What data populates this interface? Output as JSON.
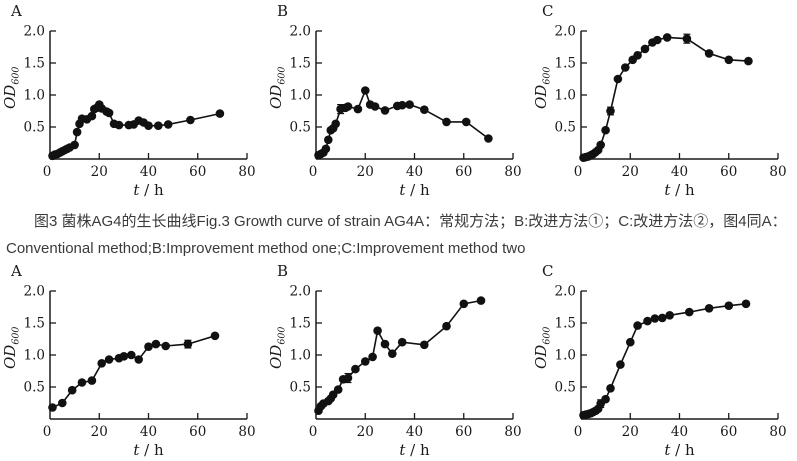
{
  "figure": {
    "caption_line1": "图3 菌株AG4的生长曲线Fig.3 Growth curve of strain AG4A：常规方法；B:改进方法①；C:改进方法②，图4同A：",
    "caption_line2": "Conventional method;B:Improvement method one;C:Improvement method two"
  },
  "colors": {
    "data_color": "#111111",
    "axis_color": "#1a1a1a",
    "caption_text": "#3a3a3a",
    "background": "#ffffff"
  },
  "axes": {
    "xlabel_italic": "t",
    "xlabel_rest": " / h",
    "ylabel_main": "OD",
    "ylabel_sub": "600",
    "xlim": [
      0,
      80
    ],
    "ylim": [
      0,
      2
    ],
    "xticks": [
      20,
      40,
      60,
      80
    ],
    "xtick_labels": [
      "20",
      "40",
      "60",
      "80"
    ],
    "yticks": [
      0.5,
      1.0,
      1.5,
      2.0
    ],
    "ytick_labels": [
      "0.5",
      "1.0",
      "1.5",
      "2.0"
    ],
    "origin_label": "0",
    "grid": false,
    "legend": "none"
  },
  "chart_data": [
    {
      "id": "fig3-A",
      "label": "A",
      "type": "line",
      "figure": "Fig.3",
      "xlabel": "t / h",
      "ylabel": "OD600",
      "points": [
        [
          1,
          0.05
        ],
        [
          2,
          0.07
        ],
        [
          3,
          0.08
        ],
        [
          4,
          0.1
        ],
        [
          5,
          0.12
        ],
        [
          6,
          0.14
        ],
        [
          7,
          0.16
        ],
        [
          8,
          0.18
        ],
        [
          10,
          0.22
        ],
        [
          11,
          0.42
        ],
        [
          12,
          0.55
        ],
        [
          13,
          0.63
        ],
        [
          15,
          0.62
        ],
        [
          17,
          0.67
        ],
        [
          18,
          0.78
        ],
        [
          19,
          0.8
        ],
        [
          20,
          0.85
        ],
        [
          21,
          0.79
        ],
        [
          23,
          0.74
        ],
        [
          24,
          0.72
        ],
        [
          26,
          0.55
        ],
        [
          28,
          0.53
        ],
        [
          32,
          0.53
        ],
        [
          34,
          0.54
        ],
        [
          36,
          0.6
        ],
        [
          38,
          0.57
        ],
        [
          40,
          0.52
        ],
        [
          44,
          0.52
        ],
        [
          48,
          0.54
        ],
        [
          57,
          0.61
        ],
        [
          69,
          0.71
        ]
      ]
    },
    {
      "id": "fig3-B",
      "label": "B",
      "type": "line",
      "figure": "Fig.3",
      "xlabel": "t / h",
      "ylabel": "OD600",
      "points": [
        [
          1,
          0.06
        ],
        [
          2,
          0.08
        ],
        [
          3,
          0.1
        ],
        [
          4,
          0.16
        ],
        [
          5,
          0.3
        ],
        [
          6,
          0.45
        ],
        [
          7,
          0.48
        ],
        [
          8,
          0.55
        ],
        [
          10,
          0.78,
          0.07
        ],
        [
          12,
          0.8
        ],
        [
          13,
          0.82
        ],
        [
          17,
          0.78
        ],
        [
          20,
          1.07
        ],
        [
          22,
          0.85
        ],
        [
          24,
          0.82
        ],
        [
          28,
          0.76
        ],
        [
          33,
          0.83
        ],
        [
          35,
          0.84
        ],
        [
          38,
          0.85
        ],
        [
          44,
          0.77
        ],
        [
          53,
          0.58
        ],
        [
          61,
          0.58
        ],
        [
          70,
          0.32
        ]
      ]
    },
    {
      "id": "fig3-C",
      "label": "C",
      "type": "line",
      "figure": "Fig.3",
      "xlabel": "t / h",
      "ylabel": "OD600",
      "points": [
        [
          1,
          0.02
        ],
        [
          2,
          0.03
        ],
        [
          3,
          0.04
        ],
        [
          4,
          0.06
        ],
        [
          5,
          0.08
        ],
        [
          6,
          0.11
        ],
        [
          7,
          0.14
        ],
        [
          8,
          0.22
        ],
        [
          10,
          0.45
        ],
        [
          12,
          0.75,
          0.06
        ],
        [
          15,
          1.25
        ],
        [
          18,
          1.43
        ],
        [
          21,
          1.55
        ],
        [
          23,
          1.62
        ],
        [
          26,
          1.72
        ],
        [
          29,
          1.82
        ],
        [
          31,
          1.86
        ],
        [
          35,
          1.9
        ],
        [
          43,
          1.88,
          0.07
        ],
        [
          52,
          1.65
        ],
        [
          60,
          1.55
        ],
        [
          68,
          1.53
        ]
      ]
    },
    {
      "id": "fig4-A",
      "label": "A",
      "type": "line",
      "figure": "Fig.4",
      "xlabel": "t / h",
      "ylabel": "OD600",
      "points": [
        [
          1,
          0.18
        ],
        [
          5,
          0.25
        ],
        [
          9,
          0.45
        ],
        [
          13,
          0.57
        ],
        [
          17,
          0.6
        ],
        [
          21,
          0.87
        ],
        [
          24,
          0.93
        ],
        [
          28,
          0.95
        ],
        [
          30,
          0.98
        ],
        [
          33,
          1.0
        ],
        [
          36,
          0.93
        ],
        [
          40,
          1.13
        ],
        [
          43,
          1.17
        ],
        [
          47,
          1.14
        ],
        [
          56,
          1.17,
          0.06
        ],
        [
          67,
          1.3
        ]
      ]
    },
    {
      "id": "fig4-B",
      "label": "B",
      "type": "line",
      "figure": "Fig.4",
      "xlabel": "t / h",
      "ylabel": "OD600",
      "points": [
        [
          1,
          0.13
        ],
        [
          2,
          0.2
        ],
        [
          3,
          0.24
        ],
        [
          5,
          0.28
        ],
        [
          6,
          0.32
        ],
        [
          7,
          0.38
        ],
        [
          9,
          0.46
        ],
        [
          11,
          0.62
        ],
        [
          13,
          0.64,
          0.07
        ],
        [
          16,
          0.78
        ],
        [
          20,
          0.9
        ],
        [
          23,
          0.97
        ],
        [
          25,
          1.38
        ],
        [
          28,
          1.17
        ],
        [
          31,
          1.02
        ],
        [
          35,
          1.2
        ],
        [
          44,
          1.16
        ],
        [
          53,
          1.45
        ],
        [
          60,
          1.8
        ],
        [
          67,
          1.85
        ]
      ]
    },
    {
      "id": "fig4-C",
      "label": "C",
      "type": "line",
      "figure": "Fig.4",
      "xlabel": "t / h",
      "ylabel": "OD600",
      "points": [
        [
          1,
          0.06
        ],
        [
          2,
          0.07
        ],
        [
          3,
          0.08
        ],
        [
          4,
          0.09
        ],
        [
          5,
          0.11
        ],
        [
          6,
          0.13
        ],
        [
          7,
          0.16
        ],
        [
          8,
          0.24,
          0.06
        ],
        [
          10,
          0.31
        ],
        [
          12,
          0.48
        ],
        [
          16,
          0.85
        ],
        [
          20,
          1.2
        ],
        [
          23,
          1.46
        ],
        [
          27,
          1.53
        ],
        [
          30,
          1.57
        ],
        [
          33,
          1.58
        ],
        [
          36,
          1.62
        ],
        [
          44,
          1.67
        ],
        [
          52,
          1.73
        ],
        [
          60,
          1.77
        ],
        [
          67,
          1.8
        ]
      ]
    }
  ]
}
